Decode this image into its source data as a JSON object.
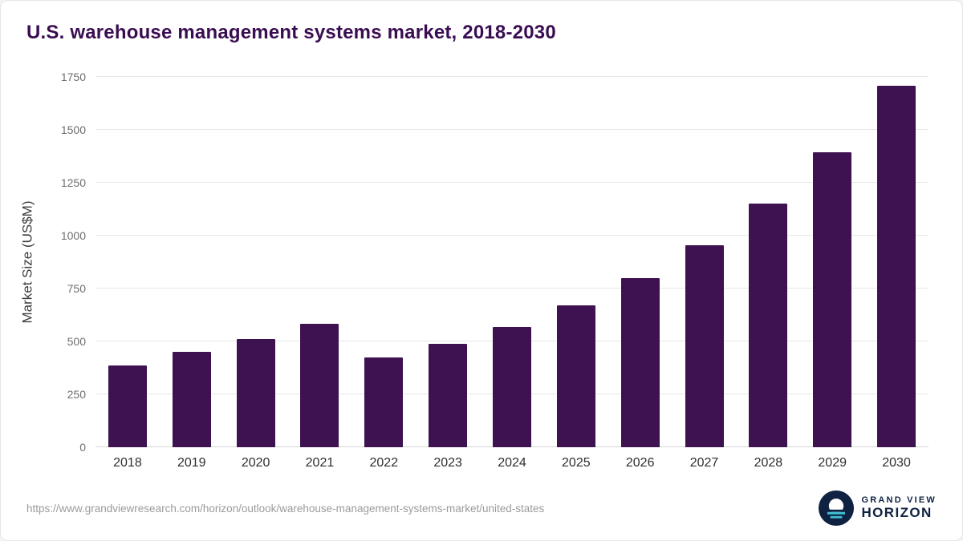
{
  "title": "U.S. warehouse management systems market, 2018-2030",
  "source_url": "https://www.grandviewresearch.com/horizon/outlook/warehouse-management-systems-market/united-states",
  "logo": {
    "line1": "GRAND VIEW",
    "line2": "HORIZON",
    "icon": "horizon-sun-icon",
    "navy": "#0f2242",
    "teal": "#3fbdd1"
  },
  "chart_data": {
    "type": "bar",
    "title": "U.S. warehouse management systems market, 2018-2030",
    "categories": [
      "2018",
      "2019",
      "2020",
      "2021",
      "2022",
      "2023",
      "2024",
      "2025",
      "2026",
      "2027",
      "2028",
      "2029",
      "2030"
    ],
    "values": [
      385,
      450,
      510,
      585,
      425,
      490,
      570,
      670,
      800,
      955,
      1150,
      1395,
      1710
    ],
    "xlabel": "",
    "ylabel": "Market Size (US$M)",
    "ylim": [
      0,
      1750
    ],
    "yticks": [
      0,
      250,
      500,
      750,
      1000,
      1250,
      1500,
      1750
    ],
    "bar_color": "#3e1151",
    "grid": true,
    "legend_position": "none"
  }
}
